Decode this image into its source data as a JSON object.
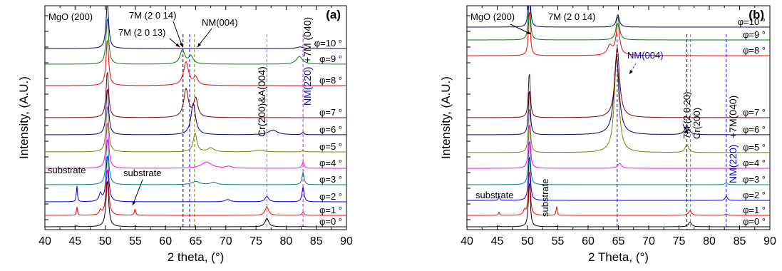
{
  "chart_data": [
    {
      "type": "line",
      "panel_label": "(a)",
      "xlabel": "2 theta, (°)",
      "ylabel": "Intensity, (A.U.)",
      "xlim": [
        40,
        90
      ],
      "x_ticks": [
        "40",
        "45",
        "50",
        "55",
        "60",
        "65",
        "70",
        "75",
        "80",
        "85",
        "90"
      ],
      "grid": false,
      "series": [
        {
          "name": "φ=0 °",
          "color": "#000000",
          "offset": 0.0,
          "peaks": [
            [
              45.3,
              0.06,
              0.1
            ],
            [
              50.35,
              3.0,
              0.25
            ],
            [
              54.95,
              0.04,
              0.12
            ],
            [
              76.8,
              0.55,
              0.35
            ],
            [
              82.8,
              0.03,
              0.15
            ]
          ]
        },
        {
          "name": "φ=1 °",
          "color": "#ff0000",
          "offset": 1.0,
          "peaks": [
            [
              45.3,
              0.55,
              0.1
            ],
            [
              49.2,
              0.3,
              0.2
            ],
            [
              50.35,
              3.0,
              0.25
            ],
            [
              54.95,
              0.45,
              0.12
            ],
            [
              76.8,
              0.55,
              0.35
            ],
            [
              82.8,
              0.2,
              0.2
            ]
          ]
        },
        {
          "name": "φ=2 °",
          "color": "#0000ff",
          "offset": 2.0,
          "peaks": [
            [
              45.3,
              1.05,
              0.1
            ],
            [
              49.2,
              0.5,
              0.25
            ],
            [
              50.35,
              3.0,
              0.25
            ],
            [
              70.3,
              0.15,
              0.5
            ],
            [
              76.8,
              0.35,
              0.35
            ],
            [
              82.8,
              0.95,
              0.2
            ]
          ]
        },
        {
          "name": "φ=3 °",
          "color": "#008080",
          "offset": 3.0,
          "peaks": [
            [
              50.35,
              3.0,
              0.25
            ],
            [
              65.0,
              0.2,
              0.8
            ],
            [
              68.0,
              0.15,
              0.6
            ],
            [
              82.8,
              0.8,
              0.2
            ]
          ]
        },
        {
          "name": "φ=4 °",
          "color": "#ff00ff",
          "offset": 4.0,
          "peaks": [
            [
              50.35,
              3.0,
              0.25
            ],
            [
              66.8,
              0.4,
              1.0
            ],
            [
              70.5,
              0.12,
              0.6
            ],
            [
              82.8,
              0.4,
              0.2
            ]
          ]
        },
        {
          "name": "φ=5 °",
          "color": "#808000",
          "offset": 5.0,
          "peaks": [
            [
              50.35,
              3.0,
              0.25
            ],
            [
              64.9,
              1.2,
              0.35
            ],
            [
              67.5,
              0.25,
              0.6
            ],
            [
              75.5,
              0.1,
              1.0
            ],
            [
              82.8,
              0.1,
              0.2
            ]
          ]
        },
        {
          "name": "φ=6 °",
          "color": "#000080",
          "offset": 6.0,
          "peaks": [
            [
              50.35,
              3.0,
              0.25
            ],
            [
              64.6,
              2.0,
              0.45
            ],
            [
              77.8,
              0.3,
              0.9
            ],
            [
              82.8,
              0.15,
              0.2
            ]
          ]
        },
        {
          "name": "φ=7 °",
          "color": "#800000",
          "offset": 7.0,
          "peaks": [
            [
              50.35,
              3.0,
              0.25
            ],
            [
              63.4,
              1.8,
              0.45
            ],
            [
              65.0,
              1.2,
              0.4
            ]
          ]
        },
        {
          "name": "φ=8 °",
          "color": "#ff0000",
          "offset": 8.0,
          "peaks": [
            [
              50.35,
              3.0,
              0.25
            ],
            [
              63.4,
              1.5,
              0.5
            ],
            [
              65.0,
              0.5,
              0.4
            ]
          ]
        },
        {
          "name": "φ=9 °",
          "color": "#008000",
          "offset": 9.0,
          "peaks": [
            [
              50.35,
              3.0,
              0.25
            ],
            [
              62.8,
              0.9,
              0.45
            ],
            [
              64.2,
              0.5,
              0.45
            ],
            [
              82.2,
              0.5,
              0.6
            ]
          ]
        },
        {
          "name": "φ=10 °",
          "color": "#000080",
          "offset": 10.0,
          "peaks": [
            [
              50.35,
              3.0,
              0.25
            ],
            [
              82.3,
              0.1,
              0.6
            ]
          ]
        }
      ],
      "reference_lines": [
        {
          "x": 62.9,
          "color": "#000000",
          "dash": true
        },
        {
          "x": 64.0,
          "color": "#0000ff",
          "dash": true
        },
        {
          "x": 64.8,
          "color": "#808000",
          "dash": true
        },
        {
          "x": 76.8,
          "color": "#808080",
          "dash": true
        },
        {
          "x": 82.8,
          "color": "#ff00ff",
          "dash": true
        }
      ],
      "annotations": [
        {
          "id": "mgo",
          "text": "MgO (200)",
          "color": "#000000"
        },
        {
          "id": "m2014",
          "text": "7M (2 0 14)",
          "color": "#000000"
        },
        {
          "id": "m2013",
          "text": "7M (2 0 13)",
          "color": "#000000"
        },
        {
          "id": "nm004",
          "text": "NM(004)",
          "color": "#000000"
        },
        {
          "id": "cr",
          "text": "Cr(200)&A(004)",
          "color": "#000000"
        },
        {
          "id": "nm220a",
          "text": "NM(220)",
          "color": "#0000cc"
        },
        {
          "id": "nm220b",
          "text": "+7M (040)",
          "color": "#000000"
        },
        {
          "id": "sub1",
          "text": "substrate",
          "color": "#000000"
        },
        {
          "id": "sub2",
          "text": "substrate",
          "color": "#000000"
        }
      ]
    },
    {
      "type": "line",
      "panel_label": "(b)",
      "xlabel": "2 Theta, (°)",
      "ylabel": "Intensity, (A.U.)",
      "xlim": [
        40,
        90
      ],
      "x_ticks": [
        "40",
        "45",
        "50",
        "55",
        "60",
        "65",
        "70",
        "75",
        "80",
        "85",
        "90"
      ],
      "grid": false,
      "series": [
        {
          "name": "φ=0 °",
          "color": "#000000",
          "offset": 0.0,
          "peaks": [
            [
              45.3,
              0.05,
              0.1
            ],
            [
              50.3,
              3.0,
              0.18
            ],
            [
              54.8,
              0.03,
              0.1
            ],
            [
              76.8,
              0.3,
              0.3
            ]
          ]
        },
        {
          "name": "φ=1 °",
          "color": "#ff0000",
          "offset": 1.0,
          "peaks": [
            [
              45.3,
              0.2,
              0.1
            ],
            [
              49.5,
              0.3,
              0.2
            ],
            [
              50.3,
              3.0,
              0.18
            ],
            [
              54.8,
              0.6,
              0.1
            ],
            [
              76.8,
              0.3,
              0.3
            ],
            [
              82.8,
              0.1,
              0.2
            ]
          ]
        },
        {
          "name": "φ=2 °",
          "color": "#0000ff",
          "offset": 2.0,
          "peaks": [
            [
              45.3,
              0.3,
              0.1
            ],
            [
              50.3,
              3.0,
              0.18
            ],
            [
              82.8,
              0.3,
              0.2
            ]
          ]
        },
        {
          "name": "φ=3 °",
          "color": "#008080",
          "offset": 3.0,
          "peaks": [
            [
              50.3,
              3.0,
              0.18
            ],
            [
              82.8,
              0.15,
              0.2
            ]
          ]
        },
        {
          "name": "φ=4 °",
          "color": "#ff00ff",
          "offset": 4.0,
          "peaks": [
            [
              50.3,
              3.0,
              0.18
            ],
            [
              65.2,
              0.3,
              0.4
            ]
          ]
        },
        {
          "name": "φ=5 °",
          "color": "#808000",
          "offset": 5.0,
          "peaks": [
            [
              50.3,
              3.0,
              0.18
            ],
            [
              64.7,
              6.0,
              0.45
            ],
            [
              76.3,
              0.5,
              0.35
            ]
          ]
        },
        {
          "name": "φ=6 °",
          "color": "#000080",
          "offset": 6.0,
          "peaks": [
            [
              50.3,
              3.0,
              0.18
            ],
            [
              64.7,
              5.0,
              0.5
            ],
            [
              76.3,
              0.6,
              0.4
            ]
          ]
        },
        {
          "name": "φ=7 °",
          "color": "#800000",
          "offset": 7.0,
          "peaks": [
            [
              50.3,
              3.0,
              0.18
            ],
            [
              64.8,
              4.5,
              0.45
            ]
          ]
        },
        {
          "name": "φ=8 °",
          "color": "#ff0000",
          "offset": 8.0,
          "peaks": [
            [
              50.3,
              3.0,
              0.18
            ],
            [
              63.6,
              0.6,
              0.5
            ],
            [
              64.9,
              2.0,
              0.35
            ]
          ]
        },
        {
          "name": "φ=9 °",
          "color": "#008000",
          "offset": 9.0,
          "peaks": [
            [
              50.3,
              3.0,
              0.18
            ],
            [
              64.9,
              1.5,
              0.3
            ]
          ]
        },
        {
          "name": "φ=10 °",
          "color": "#000080",
          "offset": 10.0,
          "peaks": [
            [
              50.3,
              3.0,
              0.18
            ],
            [
              64.9,
              0.8,
              0.3
            ]
          ]
        }
      ],
      "reference_lines": [
        {
          "x": 64.8,
          "color": "#0000ff",
          "dash": true
        },
        {
          "x": 76.3,
          "color": "#000000",
          "dash": true
        },
        {
          "x": 76.9,
          "color": "#808080",
          "dash": true
        },
        {
          "x": 82.8,
          "color": "#0000ff",
          "dash": true
        }
      ],
      "annotations": [
        {
          "id": "mgo",
          "text": "MgO (200)",
          "color": "#000000"
        },
        {
          "id": "m2014",
          "text": "7M (2 0 14)",
          "color": "#000000"
        },
        {
          "id": "nm004",
          "text": "NM(004)",
          "color": "#0000cc"
        },
        {
          "id": "m2020",
          "text": "7M (2 0 20)",
          "color": "#000000"
        },
        {
          "id": "cr",
          "text": "Cr(200)",
          "color": "#000000"
        },
        {
          "id": "nm220a",
          "text": "NM(220)",
          "color": "#0000cc"
        },
        {
          "id": "nm220b",
          "text": "+7M(040)",
          "color": "#000000"
        },
        {
          "id": "sub1",
          "text": "substrate",
          "color": "#000000"
        },
        {
          "id": "sub2",
          "text": "substrate",
          "color": "#000000"
        }
      ]
    }
  ]
}
